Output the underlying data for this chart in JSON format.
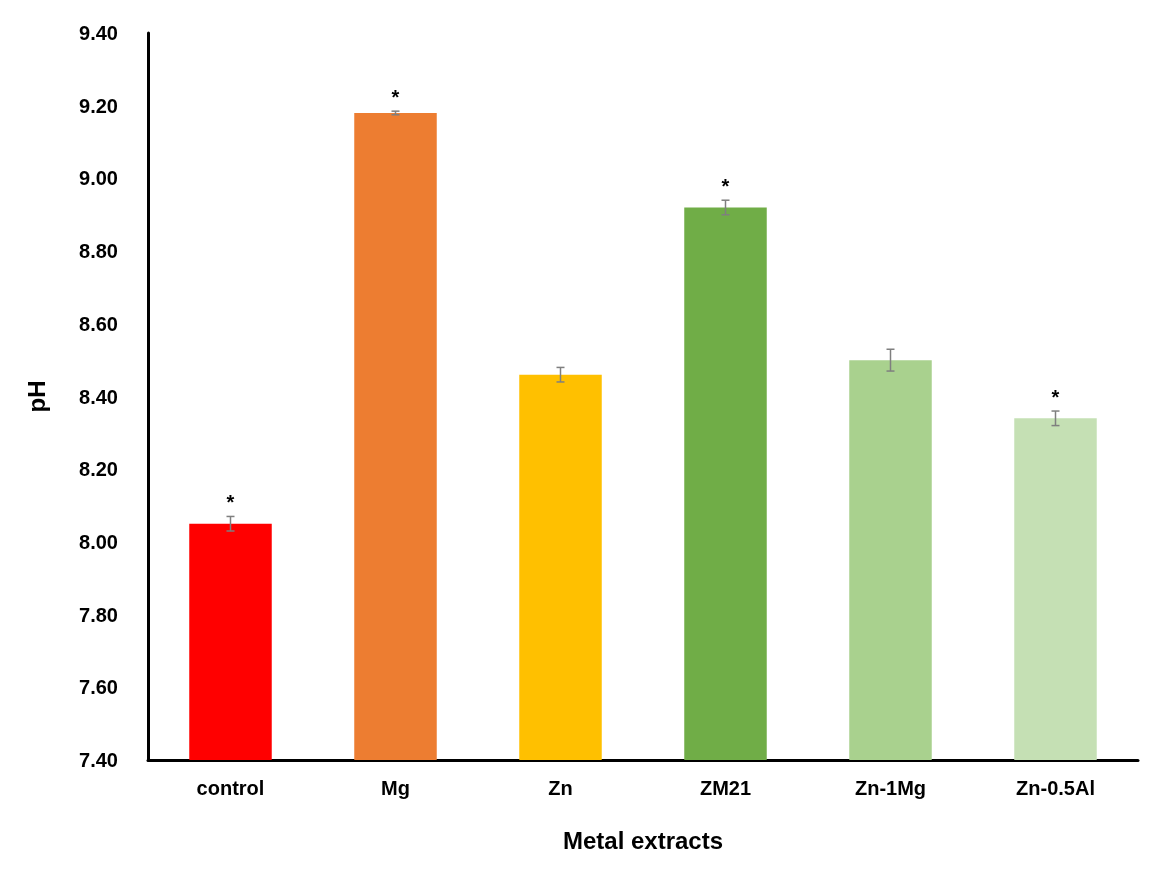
{
  "chart_data": {
    "type": "bar",
    "xlabel": "Metal extracts",
    "ylabel": "pH",
    "categories": [
      "control",
      "Mg",
      "Zn",
      "ZM21",
      "Zn-1Mg",
      "Zn-0.5Al"
    ],
    "values": [
      8.05,
      9.18,
      8.46,
      8.92,
      8.5,
      8.34
    ],
    "colors": [
      "#ff0000",
      "#ed7d31",
      "#ffc000",
      "#70ad47",
      "#a9d18e",
      "#c5e0b4"
    ],
    "errors": [
      0.02,
      0.005,
      0.02,
      0.02,
      0.03,
      0.02
    ],
    "ylim": [
      7.4,
      9.4
    ],
    "yticks": [
      {
        "value": 7.4,
        "label": "7.40"
      },
      {
        "value": 7.6,
        "label": "7.60"
      },
      {
        "value": 7.8,
        "label": "7.80"
      },
      {
        "value": 8.0,
        "label": "8.00"
      },
      {
        "value": 8.2,
        "label": "8.20"
      },
      {
        "value": 8.4,
        "label": "8.40"
      },
      {
        "value": 8.6,
        "label": "8.60"
      },
      {
        "value": 8.8,
        "label": "8.80"
      },
      {
        "value": 9.0,
        "label": "9.00"
      },
      {
        "value": 9.2,
        "label": "9.20"
      },
      {
        "value": 9.4,
        "label": "9.40"
      }
    ],
    "grid": false,
    "annotations": [
      {
        "text": "*",
        "x": "control",
        "y": 8.07
      },
      {
        "text": "*",
        "x": "Mg",
        "y": 9.185
      },
      {
        "text": "*",
        "x": "ZM21",
        "y": 8.94
      },
      {
        "text": "*",
        "x": "Zn-0.5Al",
        "y": 8.36
      }
    ]
  }
}
